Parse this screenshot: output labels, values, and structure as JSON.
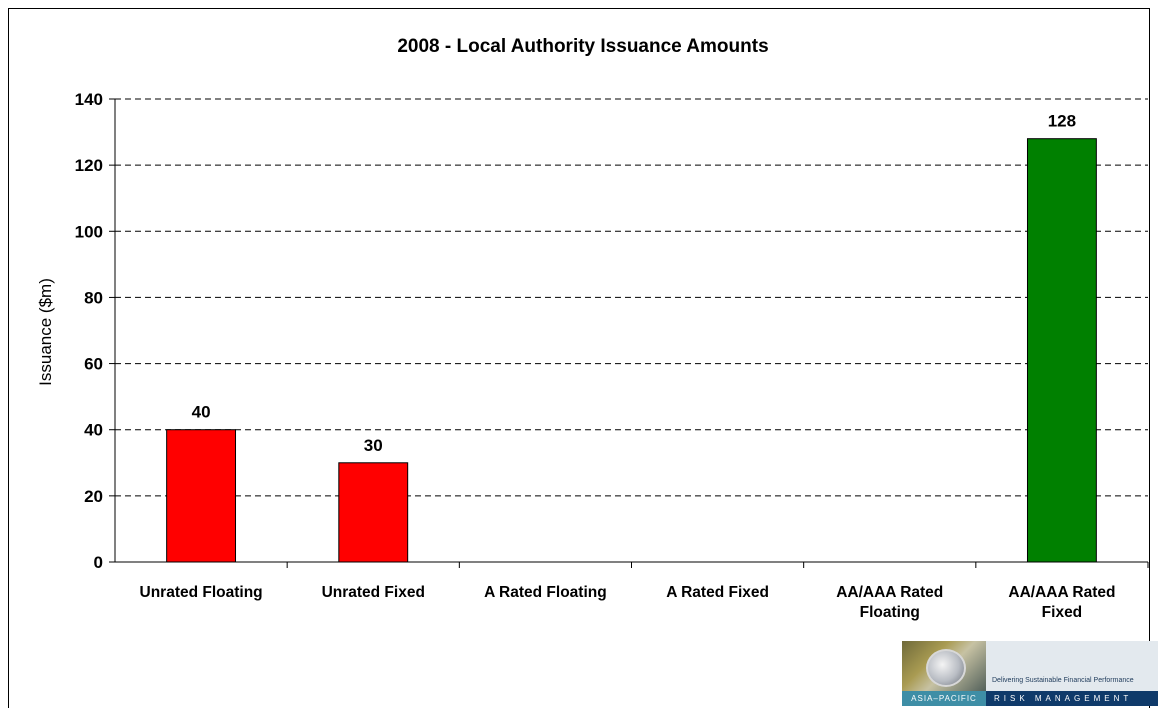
{
  "chart_data": {
    "type": "bar",
    "title": "2008 - Local Authority Issuance Amounts",
    "xlabel": "",
    "ylabel": "Issuance ($m)",
    "ylim": [
      0,
      140
    ],
    "yticks": [
      0,
      20,
      40,
      60,
      80,
      100,
      120,
      140
    ],
    "grid": "horizontal dashed",
    "categories": [
      [
        "Unrated Floating"
      ],
      [
        "Unrated Fixed"
      ],
      [
        "A Rated Floating"
      ],
      [
        "A Rated Fixed"
      ],
      [
        "AA/AAA Rated",
        "Floating"
      ],
      [
        "AA/AAA Rated",
        "Fixed"
      ]
    ],
    "values": [
      40,
      30,
      0,
      0,
      0,
      128
    ],
    "data_labels": [
      "40",
      "30",
      "",
      "",
      "",
      "128"
    ],
    "colors": [
      "#ff0000",
      "#ff0000",
      "#ff0000",
      "#ff0000",
      "#008000",
      "#008000"
    ]
  },
  "logo": {
    "tagline": "Delivering Sustainable Financial Performance",
    "left_text": "ASIA–PACIFIC",
    "right_text": "RISK MANAGEMENT"
  }
}
